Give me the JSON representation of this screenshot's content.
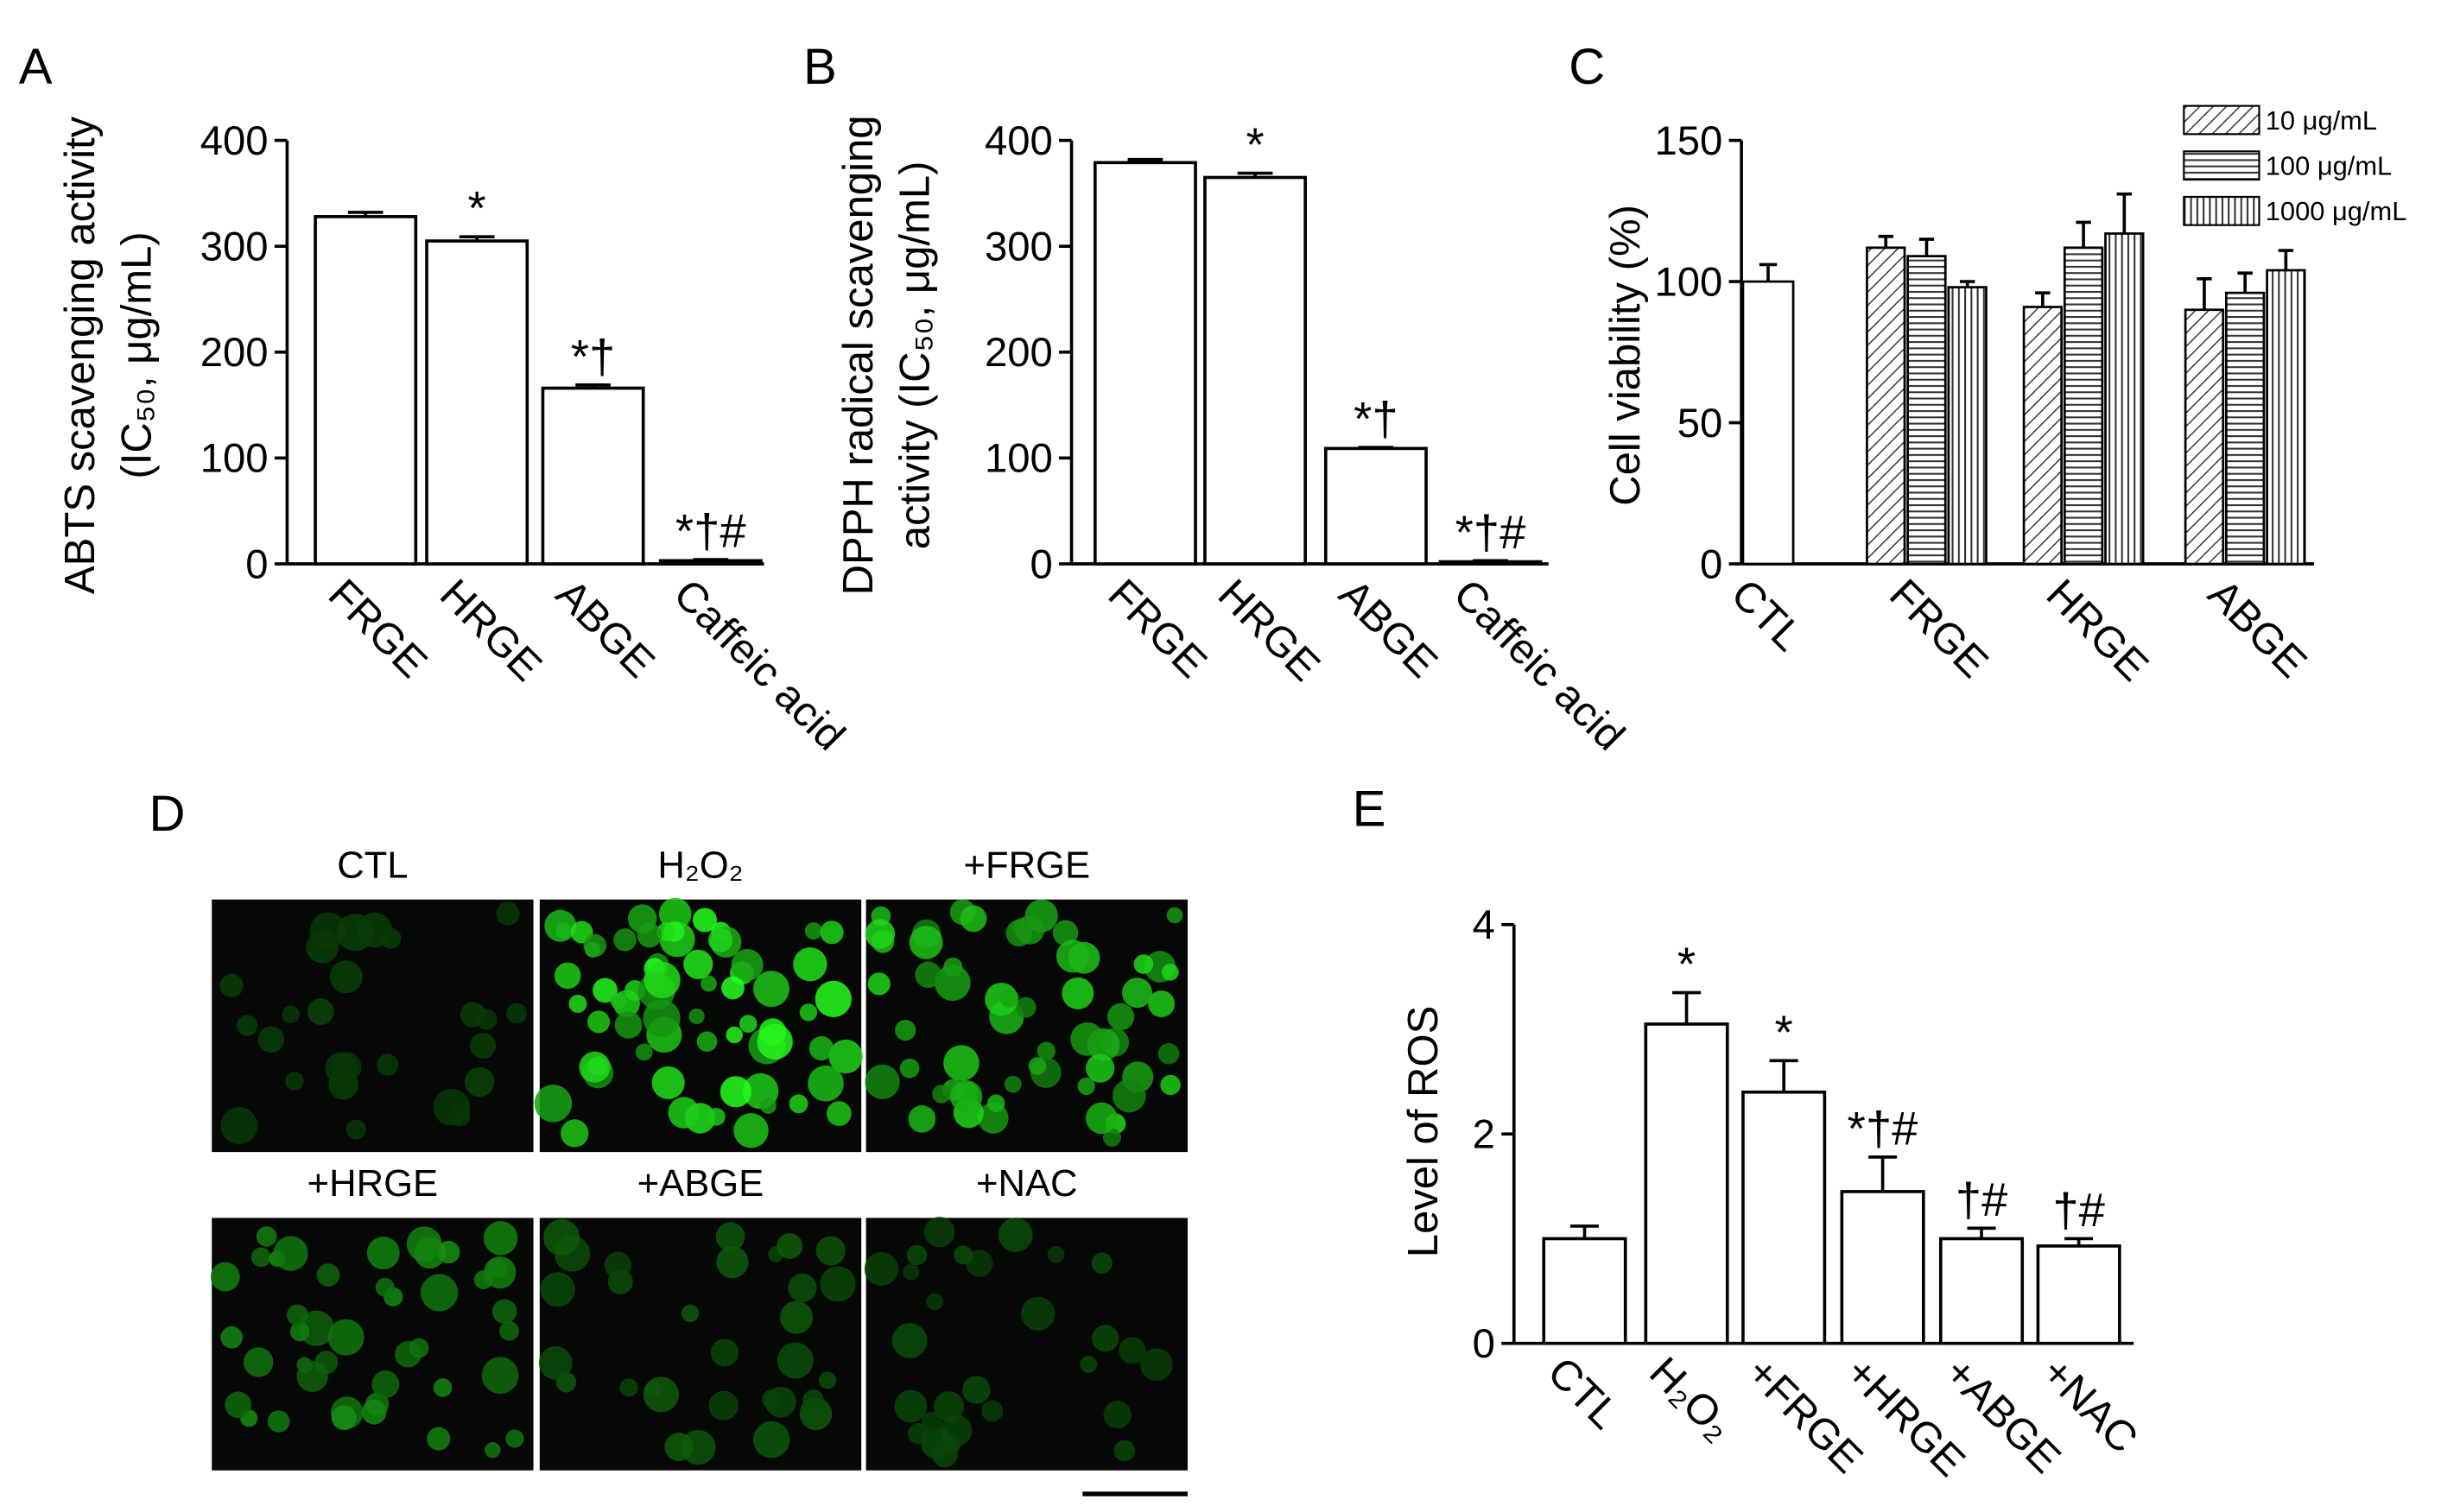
{
  "chart_data": [
    {
      "type": "bar",
      "label": "A",
      "y_label": [
        "ABTS scavenging activity",
        "(IC₅₀, μg/mL)"
      ],
      "categories": [
        "FRGE",
        "HRGE",
        "ABGE",
        "Caffeic acid"
      ],
      "values": [
        328,
        305,
        166,
        3
      ],
      "errors": [
        4,
        4,
        3,
        1
      ],
      "annotations": [
        null,
        "*",
        "*†",
        "*†#"
      ],
      "ylim": [
        0,
        400
      ],
      "yticks": [
        0,
        100,
        200,
        300,
        400
      ],
      "color": "#ffffff"
    },
    {
      "type": "bar",
      "label": "B",
      "y_label": [
        "DPPH radical scavenging",
        "activity (IC₅₀, μg/mL)"
      ],
      "categories": [
        "FRGE",
        "HRGE",
        "ABGE",
        "Caffeic acid"
      ],
      "values": [
        379,
        365,
        109,
        2
      ],
      "errors": [
        3,
        4,
        1,
        1
      ],
      "annotations": [
        null,
        "*",
        "*†",
        "*†#"
      ],
      "ylim": [
        0,
        400
      ],
      "yticks": [
        0,
        100,
        200,
        300,
        400
      ],
      "color": "#ffffff"
    },
    {
      "type": "grouped_bar",
      "label": "C",
      "y_label": "Cell viability (%)",
      "categories": [
        "CTL",
        "FRGE",
        "HRGE",
        "ABGE"
      ],
      "control_value": 100,
      "control_error": 6,
      "series": [
        {
          "name": "10 μg/mL",
          "pattern": "diagonal",
          "values": [
            null,
            112,
            91,
            90
          ],
          "errors": [
            null,
            4,
            5,
            11
          ]
        },
        {
          "name": "100 μg/mL",
          "pattern": "horizontal",
          "values": [
            null,
            109,
            112,
            96
          ],
          "errors": [
            null,
            6,
            9,
            7
          ]
        },
        {
          "name": "1000 μg/mL",
          "pattern": "vertical",
          "values": [
            null,
            98,
            117,
            104
          ],
          "errors": [
            null,
            2,
            14,
            7
          ]
        }
      ],
      "ylim": [
        0,
        150
      ],
      "yticks": [
        0,
        50,
        100,
        150
      ],
      "legend": "upper right"
    },
    {
      "type": "bar",
      "label": "E",
      "y_label": "Level of ROS",
      "categories": [
        "CTL",
        "H₂O₂",
        "+FRGE",
        "+HRGE",
        "+ABGE",
        "+NAC"
      ],
      "values": [
        1.0,
        3.05,
        2.4,
        1.45,
        1.0,
        0.93
      ],
      "errors": [
        0.12,
        0.3,
        0.3,
        0.33,
        0.1,
        0.07
      ],
      "annotations": [
        null,
        "*",
        "*",
        "*†#",
        "†#",
        "†#"
      ],
      "ylim": [
        0,
        4
      ],
      "yticks": [
        0,
        2,
        4
      ],
      "color": "#ffffff"
    }
  ],
  "image_panel": {
    "label": "D",
    "titles": [
      "CTL",
      "H₂O₂",
      "+FRGE",
      "+HRGE",
      "+ABGE",
      "+NAC"
    ]
  }
}
